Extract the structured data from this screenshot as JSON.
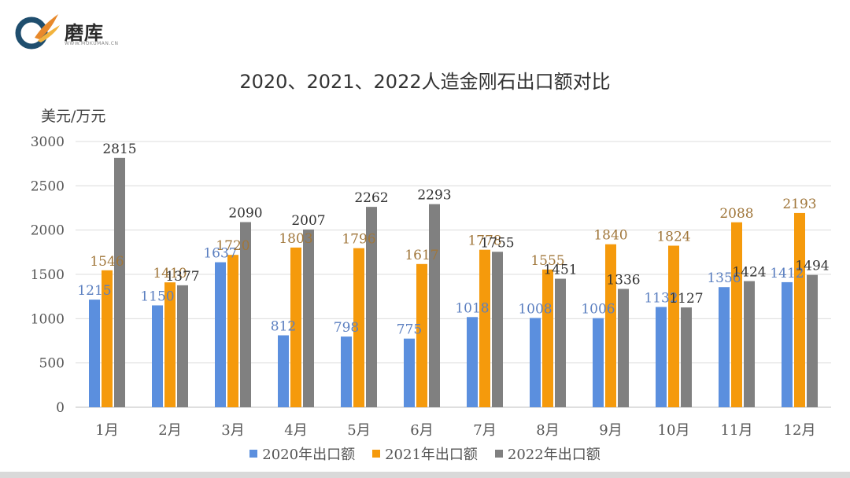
{
  "brand": {
    "name": "磨库",
    "sub": "WWW.MOKUMAN.CN"
  },
  "chart_data": {
    "type": "bar",
    "title": "2020、2021、2022人造金刚石出口额对比",
    "ylabel": "美元/万元",
    "xlabel": "",
    "ylim": [
      0,
      3000
    ],
    "yticks": [
      0,
      500,
      1000,
      1500,
      2000,
      2500,
      3000
    ],
    "grid": true,
    "legend": "bottom",
    "categories": [
      "1月",
      "2月",
      "3月",
      "4月",
      "5月",
      "6月",
      "7月",
      "8月",
      "9月",
      "10月",
      "11月",
      "12月"
    ],
    "series": [
      {
        "name": "2020年出口额",
        "color": "#5b8fde",
        "labelColor": "#5b7fc0",
        "values": [
          1215,
          1150,
          1637,
          812,
          798,
          775,
          1018,
          1008,
          1006,
          1132,
          1356,
          1412
        ]
      },
      {
        "name": "2021年出口额",
        "color": "#f59a0c",
        "labelColor": "#a0763a",
        "values": [
          1546,
          1410,
          1720,
          1803,
          1796,
          1617,
          1778,
          1555,
          1840,
          1824,
          2088,
          2193
        ]
      },
      {
        "name": "2022年出口额",
        "color": "#808080",
        "labelColor": "#333333",
        "values": [
          2815,
          1377,
          2090,
          2007,
          2262,
          2293,
          1755,
          1451,
          1336,
          1127,
          1424,
          1494
        ]
      }
    ]
  }
}
